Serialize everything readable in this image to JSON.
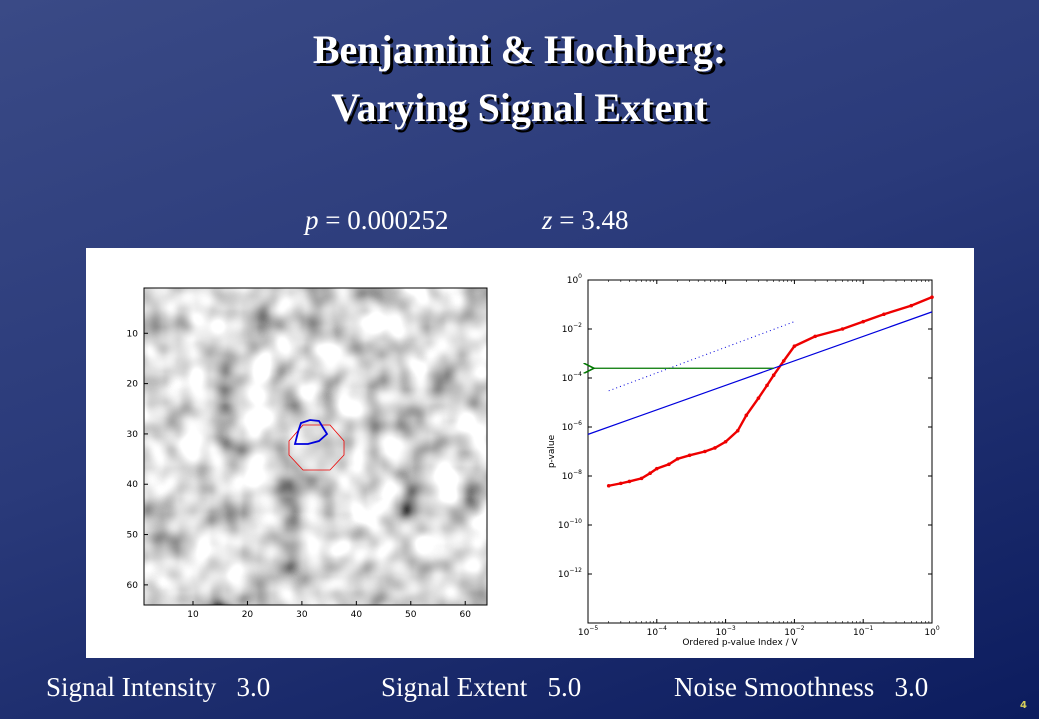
{
  "slide": {
    "title_line1": "Benjamini & Hochberg:",
    "title_line2": "Varying Signal Extent",
    "p_symbol": "p",
    "p_value": " = 0.000252",
    "z_symbol": "z",
    "z_value": " = 3.48",
    "slide_number": "4"
  },
  "footer": {
    "intensity": "Signal Intensity   3.0",
    "extent": "Signal Extent   5.0",
    "smoothness": "Noise Smoothness   3.0"
  },
  "colors": {
    "threshold_line": "#0000dd",
    "pvalue_curve": "#ee0000",
    "arrow": "#007700",
    "contour_signal": "#ee0000",
    "contour_detected": "#0000dd"
  },
  "chart_data": [
    {
      "type": "heatmap",
      "xticks": [
        "10",
        "20",
        "30",
        "40",
        "50",
        "60"
      ],
      "yticks": [
        "10",
        "20",
        "30",
        "40",
        "50",
        "60"
      ],
      "xlim": [
        1,
        64
      ],
      "ylim": [
        1,
        64
      ],
      "colormap": "gray"
    },
    {
      "type": "line",
      "xlabel": "Ordered p-value Index / V",
      "ylabel": "p-value",
      "xscale": "log",
      "yscale": "log",
      "xlim": [
        1e-05,
        1
      ],
      "ylim": [
        1e-14,
        1
      ],
      "xticks": [
        {
          "base": "10",
          "exp": "−5"
        },
        {
          "base": "10",
          "exp": "−4"
        },
        {
          "base": "10",
          "exp": "−3"
        },
        {
          "base": "10",
          "exp": "−2"
        },
        {
          "base": "10",
          "exp": "−1"
        },
        {
          "base": "10",
          "exp": "0"
        }
      ],
      "yticks": [
        {
          "base": "10",
          "exp": "0"
        },
        {
          "base": "10",
          "exp": "−2"
        },
        {
          "base": "10",
          "exp": "−4"
        },
        {
          "base": "10",
          "exp": "−6"
        },
        {
          "base": "10",
          "exp": "−8"
        },
        {
          "base": "10",
          "exp": "−10"
        },
        {
          "base": "10",
          "exp": "−12"
        }
      ],
      "series": [
        {
          "style": "red-dots",
          "x": [
            2e-05,
            3e-05,
            4e-05,
            6e-05,
            8e-05,
            0.0001,
            0.00015,
            0.0002,
            0.0003,
            0.0005,
            0.0007,
            0.001,
            0.0015,
            0.002,
            0.003,
            0.004,
            0.005,
            0.007,
            0.01,
            0.02,
            0.05,
            0.1,
            0.2,
            0.5,
            1
          ],
          "y": [
            4e-09,
            5e-09,
            6e-09,
            8e-09,
            1.3e-08,
            2e-08,
            3e-08,
            5e-08,
            7e-08,
            1e-07,
            1.4e-07,
            2.5e-07,
            7e-07,
            3e-06,
            1.5e-05,
            5e-05,
            0.00013,
            0.0005,
            0.002,
            0.005,
            0.01,
            0.02,
            0.04,
            0.09,
            0.2
          ]
        },
        {
          "style": "blue-solid",
          "x": [
            1e-05,
            1
          ],
          "y": [
            5e-07,
            0.05
          ]
        },
        {
          "style": "blue-dotted",
          "x": [
            2e-05,
            0.01
          ],
          "y": [
            3e-05,
            0.02
          ]
        }
      ],
      "annotation": {
        "type": "arrow",
        "from_x": 0.005,
        "to_x": 1e-05,
        "y": 0.00025
      }
    }
  ]
}
